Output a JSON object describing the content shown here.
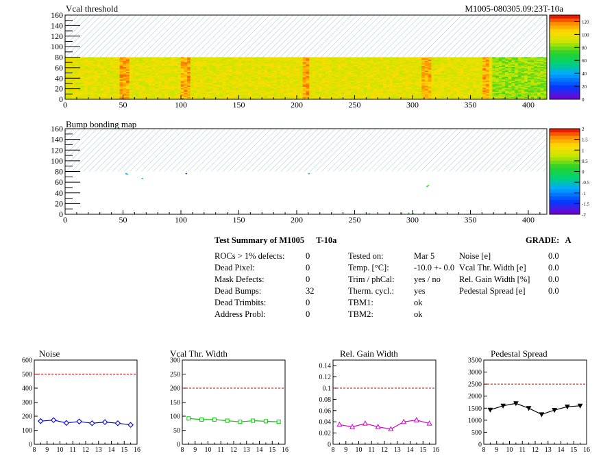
{
  "maps": {
    "vcal": {
      "title": "Vcal threshold",
      "id": "M1005-080305.09:23T-10a"
    },
    "bump": {
      "title": "Bump bonding map"
    },
    "xticks": [
      "0",
      "50",
      "100",
      "150",
      "200",
      "250",
      "300",
      "350",
      "400"
    ],
    "yticks": [
      "0",
      "20",
      "40",
      "60",
      "80",
      "100",
      "120",
      "140",
      "160"
    ],
    "vcal_scale": [
      "0",
      "20",
      "40",
      "60",
      "80",
      "100",
      "120"
    ],
    "bump_scale": [
      "-2",
      "-1.5",
      "-1",
      "-0.5",
      "0",
      "0.5",
      "1",
      "1.5",
      "2"
    ]
  },
  "summary": {
    "title": "Test Summary of M1005",
    "temp_label": "T-10a",
    "grade_label": "GRADE:",
    "grade": "A",
    "col1": [
      {
        "label": "ROCs > 1% defects:",
        "value": "0"
      },
      {
        "label": "Dead Pixel:",
        "value": "0"
      },
      {
        "label": "Mask Defects:",
        "value": "0"
      },
      {
        "label": "Dead Bumps:",
        "value": "32"
      },
      {
        "label": "Dead Trimbits:",
        "value": "0"
      },
      {
        "label": "Address Probl:",
        "value": "0"
      }
    ],
    "col2": [
      {
        "label": "Tested on:",
        "value": "Mar 5"
      },
      {
        "label": "Temp. [°C]:",
        "value": "-10.0 +- 0.0"
      },
      {
        "label": "Trim / phCal:",
        "value": "yes / no"
      },
      {
        "label": "Therm. cycl.:",
        "value": "yes"
      },
      {
        "label": "TBM1:",
        "value": "ok"
      },
      {
        "label": "TBM2:",
        "value": "ok"
      }
    ],
    "col3": [
      {
        "label": "Noise [e]",
        "value": "0.0"
      },
      {
        "label": "Vcal Thr. Width [e]",
        "value": "0.0"
      },
      {
        "label": "Rel. Gain Width [%]",
        "value": "0.0"
      },
      {
        "label": "Pedestal Spread [e]",
        "value": "0.0"
      }
    ]
  },
  "chart_data": [
    {
      "type": "heatmap",
      "title": "Vcal threshold",
      "xlim": [
        0,
        416
      ],
      "ylim": [
        0,
        160
      ],
      "data_region_y": [
        0,
        80
      ],
      "z_range": [
        0,
        130
      ],
      "description": "threshold map, values mostly 80-110 with darker column bands"
    },
    {
      "type": "heatmap",
      "title": "Bump bonding map",
      "xlim": [
        0,
        416
      ],
      "ylim": [
        0,
        160
      ],
      "data_region_y": [
        0,
        80
      ],
      "z_range": [
        -2,
        2
      ]
    },
    {
      "type": "line",
      "title": "Noise",
      "x": [
        8.5,
        9.5,
        10.5,
        11.5,
        12.5,
        13.5,
        14.5,
        15.5
      ],
      "values": [
        165,
        172,
        152,
        162,
        150,
        158,
        150,
        138
      ],
      "ylim": [
        0,
        600
      ],
      "xlim": [
        8,
        16
      ],
      "threshold": 500,
      "color": "#0000cc",
      "marker": "diamond"
    },
    {
      "type": "line",
      "title": "Vcal Thr. Width",
      "x": [
        8.5,
        9.5,
        10.5,
        11.5,
        12.5,
        13.5,
        14.5,
        15.5
      ],
      "values": [
        92,
        88,
        88,
        84,
        80,
        84,
        82,
        80
      ],
      "ylim": [
        0,
        300
      ],
      "xlim": [
        8,
        16
      ],
      "threshold": 200,
      "color": "#00cc00",
      "marker": "square"
    },
    {
      "type": "line",
      "title": "Rel. Gain Width",
      "x": [
        8.5,
        9.5,
        10.5,
        11.5,
        12.5,
        13.5,
        14.5,
        15.5
      ],
      "values": [
        0.035,
        0.031,
        0.037,
        0.031,
        0.027,
        0.04,
        0.043,
        0.037
      ],
      "ylim": [
        0,
        0.15
      ],
      "xlim": [
        8,
        16
      ],
      "threshold": 0.1,
      "color": "#cc00cc",
      "marker": "triangle"
    },
    {
      "type": "line",
      "title": "Pedestal Spread",
      "x": [
        8.5,
        9.5,
        10.5,
        11.5,
        12.5,
        13.5,
        14.5,
        15.5
      ],
      "values": [
        1430,
        1600,
        1700,
        1500,
        1240,
        1420,
        1560,
        1600
      ],
      "ylim": [
        0,
        3500
      ],
      "xlim": [
        8,
        16
      ],
      "threshold": 2500,
      "color": "#000000",
      "marker": "triangle-down"
    }
  ],
  "small_charts": {
    "xticks": [
      "8",
      "9",
      "10",
      "11",
      "12",
      "13",
      "14",
      "15",
      "16"
    ],
    "noise_yticks": [
      "0",
      "100",
      "200",
      "300",
      "400",
      "500",
      "600"
    ],
    "vcal_yticks": [
      "0",
      "50",
      "100",
      "150",
      "200",
      "250",
      "300"
    ],
    "gain_yticks": [
      "0",
      "0.02",
      "0.04",
      "0.06",
      "0.08",
      "0.1",
      "0.12",
      "0.14"
    ],
    "ped_yticks": [
      "0",
      "500",
      "1000",
      "1500",
      "2000",
      "2500",
      "3000",
      "3500"
    ]
  }
}
